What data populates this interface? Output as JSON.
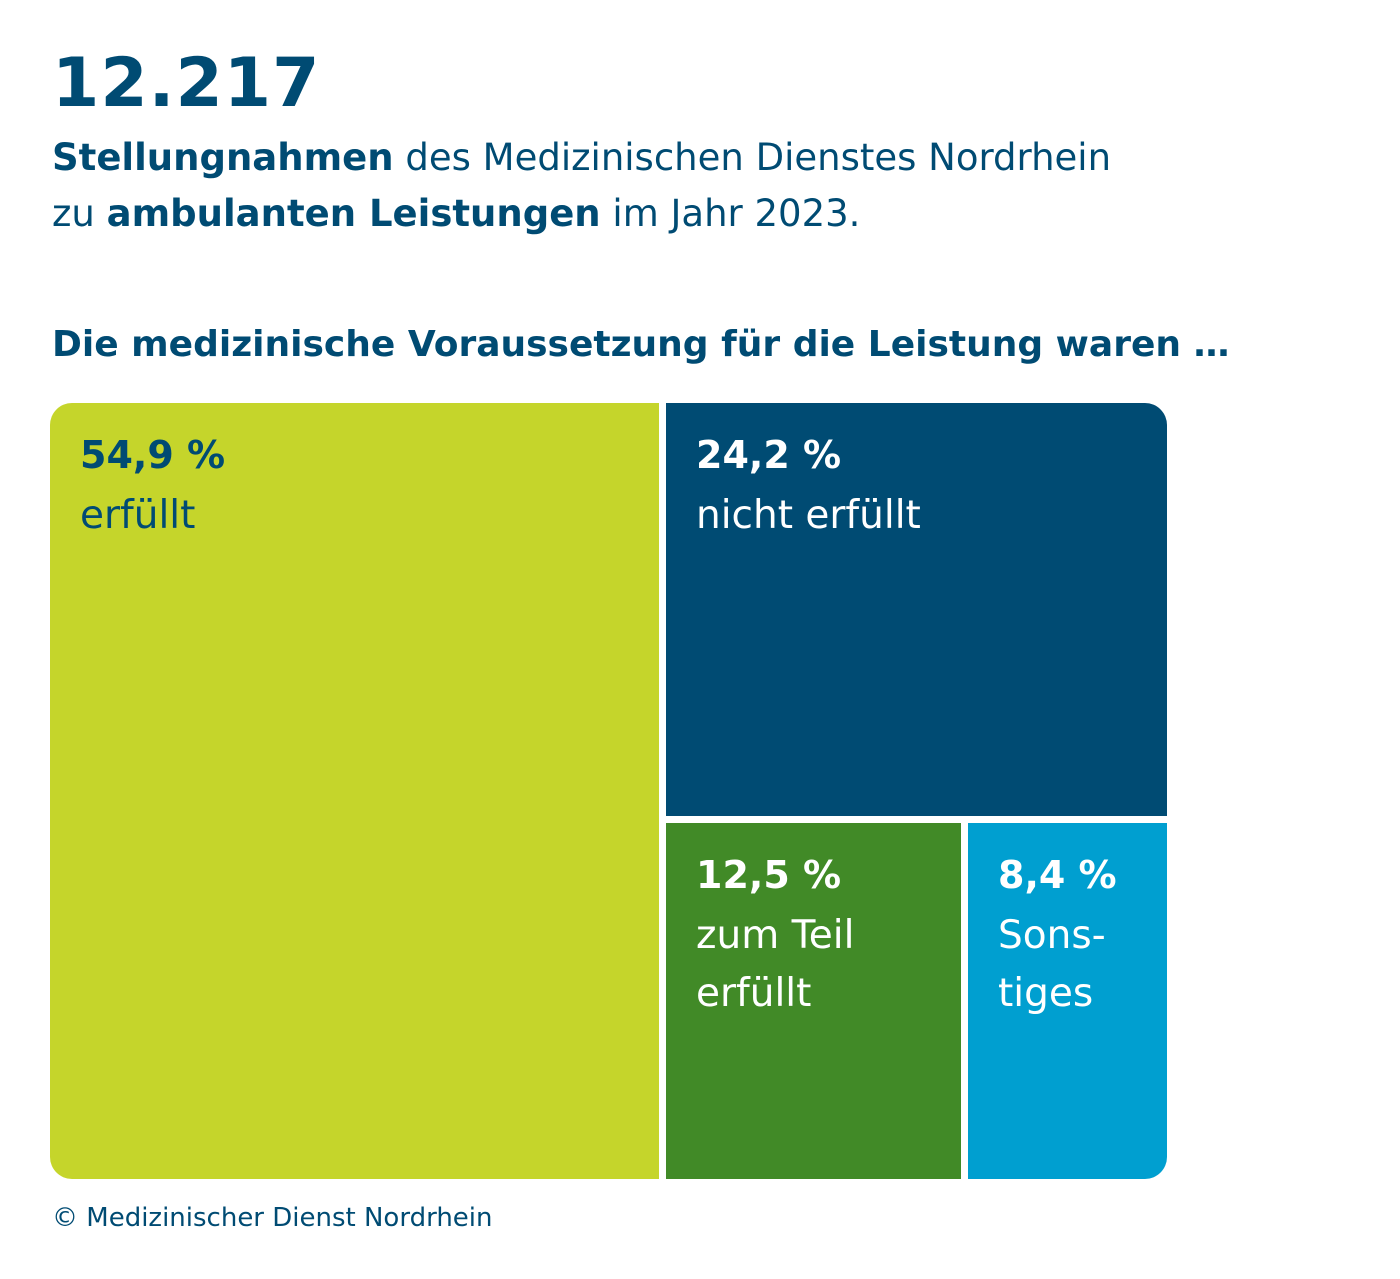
{
  "header": {
    "number": "12.217",
    "subtitle": {
      "bold1": "Stellungnahmen",
      "text1": " des Medizinischen Dienstes Nordrhein",
      "text2": "zu ",
      "bold2": "ambulanten Leistungen",
      "text3": " im Jahr 2023."
    }
  },
  "chart_heading": "Die medizinische Voraussetzung für die Leistung waren …",
  "chart_data": {
    "type": "treemap",
    "title": "Die medizinische Voraussetzung für die Leistung waren …",
    "unit": "%",
    "segments": [
      {
        "value_label": "54,9 %",
        "value": 54.9,
        "label": "erfüllt",
        "color": "#c5d52b",
        "text_color": "#004b73"
      },
      {
        "value_label": "24,2 %",
        "value": 24.2,
        "label": "nicht erfüllt",
        "color": "#004b73",
        "text_color": "#ffffff"
      },
      {
        "value_label": "12,5 %",
        "value": 12.5,
        "label": "zum Teil\nerfüllt",
        "color": "#418a27",
        "text_color": "#ffffff"
      },
      {
        "value_label": "8,4 %",
        "value": 8.4,
        "label": "Sons-\ntiges",
        "color": "#009fd0",
        "text_color": "#ffffff"
      }
    ]
  },
  "footer": {
    "copyright": "© Medizinischer Dienst Nordrhein"
  }
}
